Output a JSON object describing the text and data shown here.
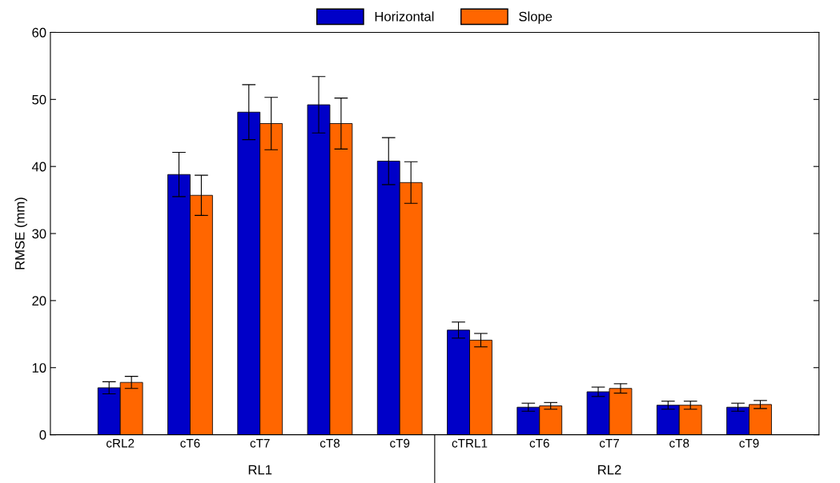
{
  "chart_data": {
    "type": "bar",
    "ylabel": "RMSE (mm)",
    "categories": [
      "cRL2",
      "cT6",
      "cT7",
      "cT8",
      "cT9",
      "cTRL1",
      "cT6",
      "cT7",
      "cT8",
      "cT9"
    ],
    "series": [
      {
        "name": "Horizontal",
        "color": "#0000c8",
        "values": [
          7.0,
          38.8,
          48.1,
          49.2,
          40.8,
          15.6,
          4.1,
          6.4,
          4.4,
          4.1
        ],
        "errors": [
          0.9,
          3.3,
          4.1,
          4.2,
          3.5,
          1.2,
          0.6,
          0.7,
          0.6,
          0.6
        ]
      },
      {
        "name": "Slope",
        "color": "#ff6600",
        "values": [
          7.8,
          35.7,
          46.4,
          46.4,
          37.6,
          14.1,
          4.3,
          6.9,
          4.4,
          4.5
        ],
        "errors": [
          0.9,
          3.0,
          3.9,
          3.8,
          3.1,
          1.0,
          0.5,
          0.7,
          0.6,
          0.6
        ]
      }
    ],
    "ylim": [
      0,
      60
    ],
    "yticks": [
      0,
      10,
      20,
      30,
      40,
      50,
      60
    ],
    "grid": false,
    "legend": "top",
    "annotations": [
      "RL1",
      "RL2"
    ]
  }
}
